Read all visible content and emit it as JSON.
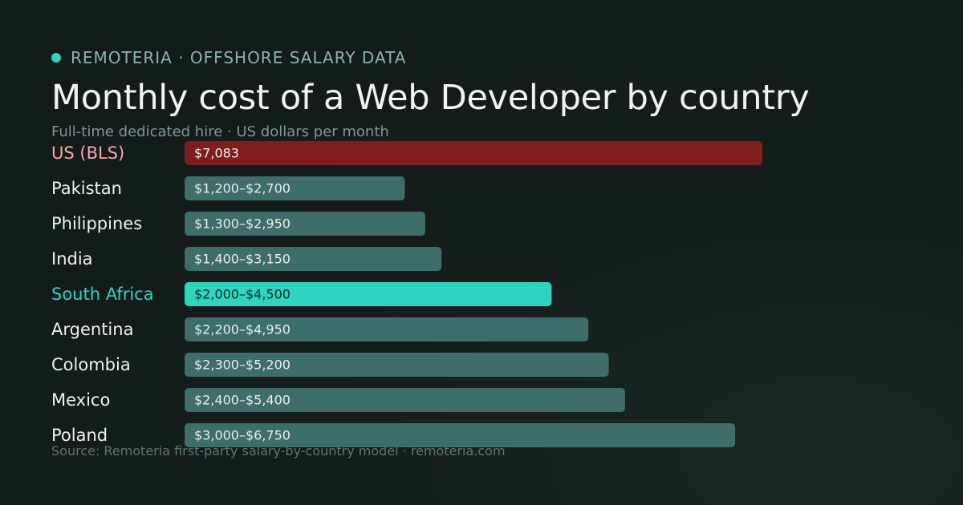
{
  "brand": {
    "text": "REMOTERIA · OFFSHORE SALARY DATA",
    "dot_color": "#2dd4bf"
  },
  "title": "Monthly cost of a Web Developer by country",
  "subtitle": "Full-time dedicated hire · US dollars per month",
  "source": "Source: Remoteria first-party salary-by-country model · remoteria.com",
  "colors": {
    "default_bar": "#3e6e6a",
    "us_bar": "#7f1d1d",
    "highlight_bar": "#2dd4bf",
    "default_label": "#eef2f1",
    "us_label": "#fca5a5",
    "highlight_label": "#2dd4bf",
    "default_value_text": "#e8eeec",
    "highlight_value_text": "#0f2a26"
  },
  "chart_data": {
    "type": "bar",
    "orientation": "horizontal",
    "title": "Monthly cost of a Web Developer by country",
    "subtitle": "Full-time dedicated hire · US dollars per month",
    "xlabel": "",
    "ylabel": "",
    "xlim": [
      0,
      7083
    ],
    "grid": false,
    "legend": "none",
    "categories": [
      "US (BLS)",
      "Pakistan",
      "Philippines",
      "India",
      "South Africa",
      "Argentina",
      "Colombia",
      "Mexico",
      "Poland"
    ],
    "values": [
      7083,
      2700,
      2950,
      3150,
      4500,
      4950,
      5200,
      5400,
      6750
    ],
    "range_low": [
      7083,
      1200,
      1300,
      1400,
      2000,
      2200,
      2300,
      2400,
      3000
    ],
    "value_labels": [
      "$7,083",
      "$1,200–$2,700",
      "$1,300–$2,950",
      "$1,400–$3,150",
      "$2,000–$4,500",
      "$2,200–$4,950",
      "$2,300–$5,200",
      "$2,400–$5,400",
      "$3,000–$6,750"
    ],
    "styles": [
      "us",
      "default",
      "default",
      "default",
      "highlight",
      "default",
      "default",
      "default",
      "default"
    ]
  }
}
